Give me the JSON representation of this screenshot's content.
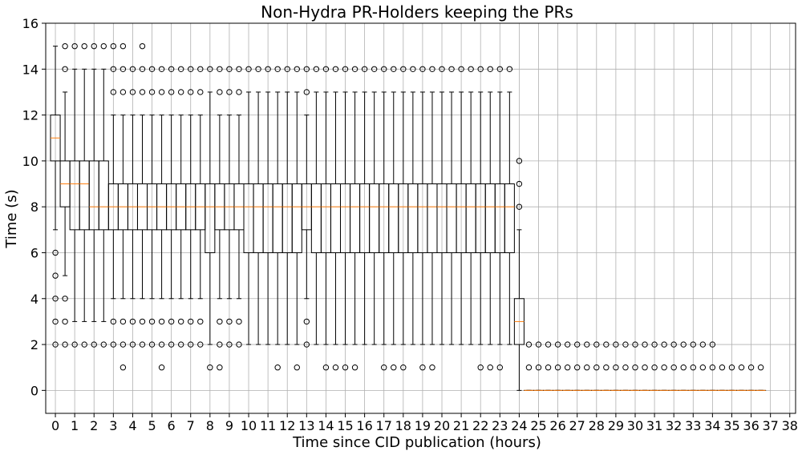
{
  "chart_data": {
    "type": "boxplot",
    "title": "Non-Hydra PR-Holders keeping the PRs",
    "xlabel": "Time since CID publication (hours)",
    "ylabel": "Time (s)",
    "xlim": [
      -0.5,
      38.3
    ],
    "ylim": [
      -1,
      16
    ],
    "xticks": [
      0,
      1,
      2,
      3,
      4,
      5,
      6,
      7,
      8,
      9,
      10,
      11,
      12,
      13,
      14,
      15,
      16,
      17,
      18,
      19,
      20,
      21,
      22,
      23,
      24,
      25,
      26,
      27,
      28,
      29,
      30,
      31,
      32,
      33,
      34,
      35,
      36,
      37,
      38
    ],
    "yticks": [
      0,
      2,
      4,
      6,
      8,
      10,
      12,
      14,
      16
    ],
    "grid": true,
    "box_interval_hours": 0.5,
    "colors": {
      "box": "#000000",
      "median": "#ff7f0e",
      "grid": "#b0b0b0",
      "outlier": "#000000"
    },
    "boxes": [
      {
        "x": 0,
        "q1": 10,
        "median": 11,
        "q3": 12,
        "whislo": 7,
        "whishi": 15,
        "fliers": [
          2,
          3,
          4,
          5,
          6
        ]
      },
      {
        "x": 0.5,
        "q1": 8,
        "median": 9,
        "q3": 10,
        "whislo": 5,
        "whishi": 13,
        "fliers": [
          2,
          3,
          4,
          14,
          15
        ]
      },
      {
        "x": 1,
        "q1": 7,
        "median": 9,
        "q3": 10,
        "whislo": 3,
        "whishi": 14,
        "fliers": [
          2,
          15
        ]
      },
      {
        "x": 1.5,
        "q1": 7,
        "median": 9,
        "q3": 10,
        "whislo": 3,
        "whishi": 14,
        "fliers": [
          2,
          15
        ]
      },
      {
        "x": 2,
        "q1": 7,
        "median": 8,
        "q3": 10,
        "whislo": 3,
        "whishi": 14,
        "fliers": [
          2,
          15
        ]
      },
      {
        "x": 2.5,
        "q1": 7,
        "median": 8,
        "q3": 10,
        "whislo": 3,
        "whishi": 14,
        "fliers": [
          2,
          15
        ]
      },
      {
        "x": 3,
        "q1": 7,
        "median": 8,
        "q3": 9,
        "whislo": 4,
        "whishi": 12,
        "fliers": [
          2,
          3,
          13,
          14,
          15
        ]
      },
      {
        "x": 3.5,
        "q1": 7,
        "median": 8,
        "q3": 9,
        "whislo": 4,
        "whishi": 12,
        "fliers": [
          1,
          2,
          3,
          13,
          14,
          15
        ]
      },
      {
        "x": 4,
        "q1": 7,
        "median": 8,
        "q3": 9,
        "whislo": 4,
        "whishi": 12,
        "fliers": [
          2,
          3,
          13,
          14
        ]
      },
      {
        "x": 4.5,
        "q1": 7,
        "median": 8,
        "q3": 9,
        "whislo": 4,
        "whishi": 12,
        "fliers": [
          2,
          3,
          13,
          14,
          15
        ]
      },
      {
        "x": 5,
        "q1": 7,
        "median": 8,
        "q3": 9,
        "whislo": 4,
        "whishi": 12,
        "fliers": [
          2,
          3,
          13,
          14
        ]
      },
      {
        "x": 5.5,
        "q1": 7,
        "median": 8,
        "q3": 9,
        "whislo": 4,
        "whishi": 12,
        "fliers": [
          1,
          2,
          3,
          13,
          14
        ]
      },
      {
        "x": 6,
        "q1": 7,
        "median": 8,
        "q3": 9,
        "whislo": 4,
        "whishi": 12,
        "fliers": [
          2,
          3,
          13,
          14
        ]
      },
      {
        "x": 6.5,
        "q1": 7,
        "median": 8,
        "q3": 9,
        "whislo": 4,
        "whishi": 12,
        "fliers": [
          2,
          3,
          13,
          14
        ]
      },
      {
        "x": 7,
        "q1": 7,
        "median": 8,
        "q3": 9,
        "whislo": 4,
        "whishi": 12,
        "fliers": [
          2,
          3,
          13,
          14
        ]
      },
      {
        "x": 7.5,
        "q1": 7,
        "median": 8,
        "q3": 9,
        "whislo": 4,
        "whishi": 12,
        "fliers": [
          2,
          3,
          13,
          14
        ]
      },
      {
        "x": 8,
        "q1": 6,
        "median": 8,
        "q3": 9,
        "whislo": 2,
        "whishi": 13,
        "fliers": [
          1,
          14
        ]
      },
      {
        "x": 8.5,
        "q1": 7,
        "median": 8,
        "q3": 9,
        "whislo": 4,
        "whishi": 12,
        "fliers": [
          1,
          2,
          3,
          13,
          14
        ]
      },
      {
        "x": 9,
        "q1": 7,
        "median": 8,
        "q3": 9,
        "whislo": 4,
        "whishi": 12,
        "fliers": [
          2,
          3,
          13,
          14
        ]
      },
      {
        "x": 9.5,
        "q1": 7,
        "median": 8,
        "q3": 9,
        "whislo": 4,
        "whishi": 12,
        "fliers": [
          2,
          3,
          13,
          14
        ]
      },
      {
        "x": 10,
        "q1": 6,
        "median": 8,
        "q3": 9,
        "whislo": 2,
        "whishi": 13,
        "fliers": [
          14
        ]
      },
      {
        "x": 10.5,
        "q1": 6,
        "median": 8,
        "q3": 9,
        "whislo": 2,
        "whishi": 13,
        "fliers": [
          14
        ]
      },
      {
        "x": 11,
        "q1": 6,
        "median": 8,
        "q3": 9,
        "whislo": 2,
        "whishi": 13,
        "fliers": [
          14
        ]
      },
      {
        "x": 11.5,
        "q1": 6,
        "median": 8,
        "q3": 9,
        "whislo": 2,
        "whishi": 13,
        "fliers": [
          1,
          14
        ]
      },
      {
        "x": 12,
        "q1": 6,
        "median": 8,
        "q3": 9,
        "whislo": 2,
        "whishi": 13,
        "fliers": [
          14
        ]
      },
      {
        "x": 12.5,
        "q1": 6,
        "median": 8,
        "q3": 9,
        "whislo": 2,
        "whishi": 13,
        "fliers": [
          1,
          14
        ]
      },
      {
        "x": 13,
        "q1": 7,
        "median": 8,
        "q3": 9,
        "whislo": 4,
        "whishi": 12,
        "fliers": [
          2,
          3,
          13,
          14
        ]
      },
      {
        "x": 13.5,
        "q1": 6,
        "median": 8,
        "q3": 9,
        "whislo": 2,
        "whishi": 13,
        "fliers": [
          14
        ]
      },
      {
        "x": 14,
        "q1": 6,
        "median": 8,
        "q3": 9,
        "whislo": 2,
        "whishi": 13,
        "fliers": [
          1,
          14
        ]
      },
      {
        "x": 14.5,
        "q1": 6,
        "median": 8,
        "q3": 9,
        "whislo": 2,
        "whishi": 13,
        "fliers": [
          1,
          14
        ]
      },
      {
        "x": 15,
        "q1": 6,
        "median": 8,
        "q3": 9,
        "whislo": 2,
        "whishi": 13,
        "fliers": [
          1,
          14
        ]
      },
      {
        "x": 15.5,
        "q1": 6,
        "median": 8,
        "q3": 9,
        "whislo": 2,
        "whishi": 13,
        "fliers": [
          1,
          14
        ]
      },
      {
        "x": 16,
        "q1": 6,
        "median": 8,
        "q3": 9,
        "whislo": 2,
        "whishi": 13,
        "fliers": [
          14
        ]
      },
      {
        "x": 16.5,
        "q1": 6,
        "median": 8,
        "q3": 9,
        "whislo": 2,
        "whishi": 13,
        "fliers": [
          14
        ]
      },
      {
        "x": 17,
        "q1": 6,
        "median": 8,
        "q3": 9,
        "whislo": 2,
        "whishi": 13,
        "fliers": [
          1,
          14
        ]
      },
      {
        "x": 17.5,
        "q1": 6,
        "median": 8,
        "q3": 9,
        "whislo": 2,
        "whishi": 13,
        "fliers": [
          1,
          14
        ]
      },
      {
        "x": 18,
        "q1": 6,
        "median": 8,
        "q3": 9,
        "whislo": 2,
        "whishi": 13,
        "fliers": [
          1,
          14
        ]
      },
      {
        "x": 18.5,
        "q1": 6,
        "median": 8,
        "q3": 9,
        "whislo": 2,
        "whishi": 13,
        "fliers": [
          14
        ]
      },
      {
        "x": 19,
        "q1": 6,
        "median": 8,
        "q3": 9,
        "whislo": 2,
        "whishi": 13,
        "fliers": [
          1,
          14
        ]
      },
      {
        "x": 19.5,
        "q1": 6,
        "median": 8,
        "q3": 9,
        "whislo": 2,
        "whishi": 13,
        "fliers": [
          1,
          14
        ]
      },
      {
        "x": 20,
        "q1": 6,
        "median": 8,
        "q3": 9,
        "whislo": 2,
        "whishi": 13,
        "fliers": [
          14
        ]
      },
      {
        "x": 20.5,
        "q1": 6,
        "median": 8,
        "q3": 9,
        "whislo": 2,
        "whishi": 13,
        "fliers": [
          14
        ]
      },
      {
        "x": 21,
        "q1": 6,
        "median": 8,
        "q3": 9,
        "whislo": 2,
        "whishi": 13,
        "fliers": [
          14
        ]
      },
      {
        "x": 21.5,
        "q1": 6,
        "median": 8,
        "q3": 9,
        "whislo": 2,
        "whishi": 13,
        "fliers": [
          14
        ]
      },
      {
        "x": 22,
        "q1": 6,
        "median": 8,
        "q3": 9,
        "whislo": 2,
        "whishi": 13,
        "fliers": [
          1,
          14
        ]
      },
      {
        "x": 22.5,
        "q1": 6,
        "median": 8,
        "q3": 9,
        "whislo": 2,
        "whishi": 13,
        "fliers": [
          1,
          14
        ]
      },
      {
        "x": 23,
        "q1": 6,
        "median": 8,
        "q3": 9,
        "whislo": 2,
        "whishi": 13,
        "fliers": [
          1,
          14
        ]
      },
      {
        "x": 23.5,
        "q1": 6,
        "median": 8,
        "q3": 9,
        "whislo": 2,
        "whishi": 13,
        "fliers": [
          14
        ]
      },
      {
        "x": 24,
        "q1": 2,
        "median": 3,
        "q3": 4,
        "whislo": 0,
        "whishi": 7,
        "fliers": [
          8,
          9,
          10
        ]
      },
      {
        "x": 24.5,
        "q1": 0,
        "median": 0,
        "q3": 0,
        "whislo": 0,
        "whishi": 0,
        "fliers": [
          1,
          2
        ]
      },
      {
        "x": 25,
        "q1": 0,
        "median": 0,
        "q3": 0,
        "whislo": 0,
        "whishi": 0,
        "fliers": [
          1,
          2
        ]
      },
      {
        "x": 25.5,
        "q1": 0,
        "median": 0,
        "q3": 0,
        "whislo": 0,
        "whishi": 0,
        "fliers": [
          1,
          2
        ]
      },
      {
        "x": 26,
        "q1": 0,
        "median": 0,
        "q3": 0,
        "whislo": 0,
        "whishi": 0,
        "fliers": [
          1,
          2
        ]
      },
      {
        "x": 26.5,
        "q1": 0,
        "median": 0,
        "q3": 0,
        "whislo": 0,
        "whishi": 0,
        "fliers": [
          1,
          2
        ]
      },
      {
        "x": 27,
        "q1": 0,
        "median": 0,
        "q3": 0,
        "whislo": 0,
        "whishi": 0,
        "fliers": [
          1,
          2
        ]
      },
      {
        "x": 27.5,
        "q1": 0,
        "median": 0,
        "q3": 0,
        "whislo": 0,
        "whishi": 0,
        "fliers": [
          1,
          2
        ]
      },
      {
        "x": 28,
        "q1": 0,
        "median": 0,
        "q3": 0,
        "whislo": 0,
        "whishi": 0,
        "fliers": [
          1,
          2
        ]
      },
      {
        "x": 28.5,
        "q1": 0,
        "median": 0,
        "q3": 0,
        "whislo": 0,
        "whishi": 0,
        "fliers": [
          1,
          2
        ]
      },
      {
        "x": 29,
        "q1": 0,
        "median": 0,
        "q3": 0,
        "whislo": 0,
        "whishi": 0,
        "fliers": [
          1,
          2
        ]
      },
      {
        "x": 29.5,
        "q1": 0,
        "median": 0,
        "q3": 0,
        "whislo": 0,
        "whishi": 0,
        "fliers": [
          1,
          2
        ]
      },
      {
        "x": 30,
        "q1": 0,
        "median": 0,
        "q3": 0,
        "whislo": 0,
        "whishi": 0,
        "fliers": [
          1,
          2
        ]
      },
      {
        "x": 30.5,
        "q1": 0,
        "median": 0,
        "q3": 0,
        "whislo": 0,
        "whishi": 0,
        "fliers": [
          1,
          2
        ]
      },
      {
        "x": 31,
        "q1": 0,
        "median": 0,
        "q3": 0,
        "whislo": 0,
        "whishi": 0,
        "fliers": [
          1,
          2
        ]
      },
      {
        "x": 31.5,
        "q1": 0,
        "median": 0,
        "q3": 0,
        "whislo": 0,
        "whishi": 0,
        "fliers": [
          1,
          2
        ]
      },
      {
        "x": 32,
        "q1": 0,
        "median": 0,
        "q3": 0,
        "whislo": 0,
        "whishi": 0,
        "fliers": [
          1,
          2
        ]
      },
      {
        "x": 32.5,
        "q1": 0,
        "median": 0,
        "q3": 0,
        "whislo": 0,
        "whishi": 0,
        "fliers": [
          1,
          2
        ]
      },
      {
        "x": 33,
        "q1": 0,
        "median": 0,
        "q3": 0,
        "whislo": 0,
        "whishi": 0,
        "fliers": [
          1,
          2
        ]
      },
      {
        "x": 33.5,
        "q1": 0,
        "median": 0,
        "q3": 0,
        "whislo": 0,
        "whishi": 0,
        "fliers": [
          1,
          2
        ]
      },
      {
        "x": 34,
        "q1": 0,
        "median": 0,
        "q3": 0,
        "whislo": 0,
        "whishi": 0,
        "fliers": [
          1,
          2
        ]
      },
      {
        "x": 34.5,
        "q1": 0,
        "median": 0,
        "q3": 0,
        "whislo": 0,
        "whishi": 0,
        "fliers": [
          1
        ]
      },
      {
        "x": 35,
        "q1": 0,
        "median": 0,
        "q3": 0,
        "whislo": 0,
        "whishi": 0,
        "fliers": [
          1
        ]
      },
      {
        "x": 35.5,
        "q1": 0,
        "median": 0,
        "q3": 0,
        "whislo": 0,
        "whishi": 0,
        "fliers": [
          1
        ]
      },
      {
        "x": 36,
        "q1": 0,
        "median": 0,
        "q3": 0,
        "whislo": 0,
        "whishi": 0,
        "fliers": [
          1
        ]
      },
      {
        "x": 36.5,
        "q1": 0,
        "median": 0,
        "q3": 0,
        "whislo": 0,
        "whishi": 0,
        "fliers": [
          1
        ]
      }
    ]
  }
}
